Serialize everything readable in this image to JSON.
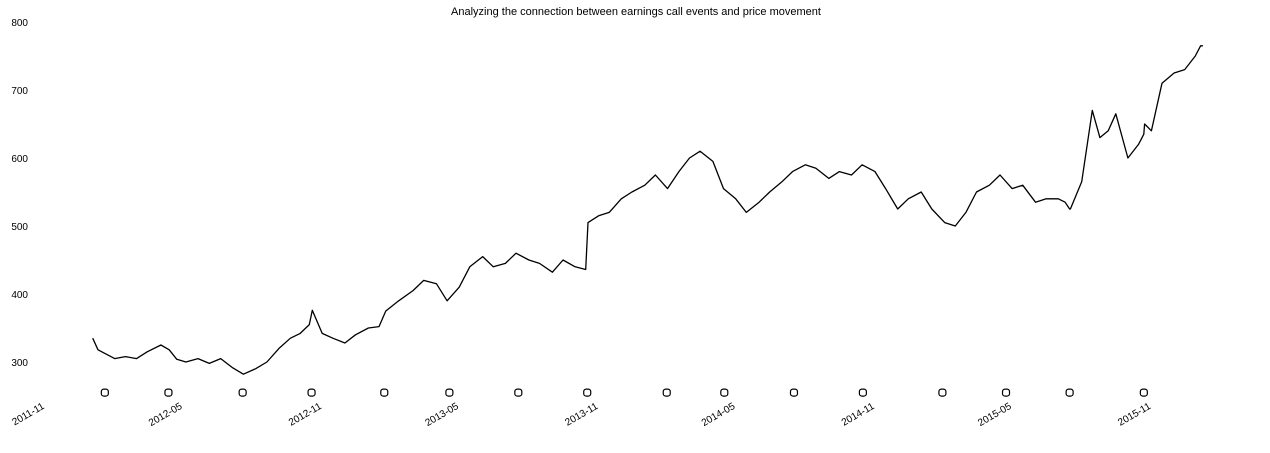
{
  "chart_data": {
    "type": "line",
    "title": "Analyzing the connection between earnings call events and price movement",
    "xlabel": "",
    "ylabel": "",
    "xlim": [
      "2011-11-01",
      "2016-01-20"
    ],
    "ylim": [
      275,
      800
    ],
    "y_ticks": [
      300,
      400,
      500,
      600,
      700,
      800
    ],
    "x_ticks": [
      "2011-11",
      "2012-05",
      "2012-11",
      "2013-05",
      "2013-11",
      "2014-05",
      "2014-11",
      "2015-05",
      "2015-11"
    ],
    "grid": false,
    "legend": "none",
    "line_color": "#000000",
    "marker_color": "#000000",
    "series": [
      {
        "x": [
          "2012-01-03",
          "2012-01-10",
          "2012-01-20",
          "2012-02-01",
          "2012-02-15",
          "2012-03-01",
          "2012-03-15",
          "2012-04-02",
          "2012-04-13",
          "2012-04-23",
          "2012-05-05",
          "2012-05-21",
          "2012-06-05",
          "2012-06-20",
          "2012-07-05",
          "2012-07-20",
          "2012-08-05",
          "2012-08-20",
          "2012-09-05",
          "2012-09-20",
          "2012-10-03",
          "2012-10-15",
          "2012-10-19",
          "2012-11-01",
          "2012-11-15",
          "2012-12-01",
          "2012-12-15",
          "2013-01-01",
          "2013-01-15",
          "2013-01-24",
          "2013-02-10",
          "2013-03-01",
          "2013-03-15",
          "2013-04-01",
          "2013-04-15",
          "2013-05-01",
          "2013-05-15",
          "2013-06-01",
          "2013-06-15",
          "2013-07-01",
          "2013-07-15",
          "2013-08-01",
          "2013-08-15",
          "2013-09-01",
          "2013-09-15",
          "2013-10-01",
          "2013-10-15",
          "2013-10-18",
          "2013-11-01",
          "2013-11-15",
          "2013-12-01",
          "2013-12-15",
          "2014-01-01",
          "2014-01-15",
          "2014-01-31",
          "2014-02-15",
          "2014-03-01",
          "2014-03-15",
          "2014-04-01",
          "2014-04-15",
          "2014-05-01",
          "2014-05-15",
          "2014-06-01",
          "2014-06-15",
          "2014-07-01",
          "2014-07-15",
          "2014-08-01",
          "2014-08-15",
          "2014-09-01",
          "2014-09-15",
          "2014-10-01",
          "2014-10-15",
          "2014-11-01",
          "2014-11-15",
          "2014-12-01",
          "2014-12-15",
          "2015-01-01",
          "2015-01-15",
          "2015-02-01",
          "2015-02-15",
          "2015-03-01",
          "2015-03-15",
          "2015-04-01",
          "2015-04-15",
          "2015-05-01",
          "2015-05-15",
          "2015-06-01",
          "2015-06-15",
          "2015-07-01",
          "2015-07-10",
          "2015-07-16",
          "2015-07-17",
          "2015-08-01",
          "2015-08-15",
          "2015-08-25",
          "2015-09-05",
          "2015-09-15",
          "2015-10-01",
          "2015-10-15",
          "2015-10-22",
          "2015-10-23",
          "2015-11-01",
          "2015-11-15",
          "2015-12-01",
          "2015-12-15",
          "2015-12-29",
          "2016-01-05",
          "2016-01-08"
        ],
        "y": [
          335,
          318,
          312,
          305,
          308,
          305,
          315,
          325,
          318,
          304,
          300,
          305,
          298,
          305,
          292,
          282,
          290,
          300,
          320,
          335,
          342,
          355,
          376,
          342,
          335,
          328,
          340,
          350,
          352,
          375,
          390,
          405,
          420,
          415,
          390,
          410,
          440,
          455,
          440,
          445,
          460,
          450,
          445,
          432,
          450,
          440,
          436,
          505,
          515,
          520,
          540,
          550,
          560,
          575,
          555,
          580,
          600,
          610,
          595,
          555,
          540,
          520,
          535,
          550,
          565,
          580,
          590,
          585,
          570,
          580,
          575,
          590,
          580,
          555,
          525,
          540,
          550,
          525,
          505,
          500,
          520,
          550,
          560,
          575,
          555,
          560,
          535,
          540,
          540,
          535,
          525,
          525,
          565,
          670,
          630,
          640,
          665,
          600,
          620,
          635,
          650,
          640,
          710,
          725,
          730,
          750,
          765,
          765
        ]
      }
    ],
    "earnings_events": [
      "2012-01-19",
      "2012-04-12",
      "2012-07-19",
      "2012-10-18",
      "2013-01-22",
      "2013-04-18",
      "2013-07-18",
      "2013-10-17",
      "2014-01-30",
      "2014-04-16",
      "2014-07-17",
      "2014-10-16",
      "2015-01-29",
      "2015-04-23",
      "2015-07-16",
      "2015-10-22"
    ],
    "marker_level": 255
  }
}
